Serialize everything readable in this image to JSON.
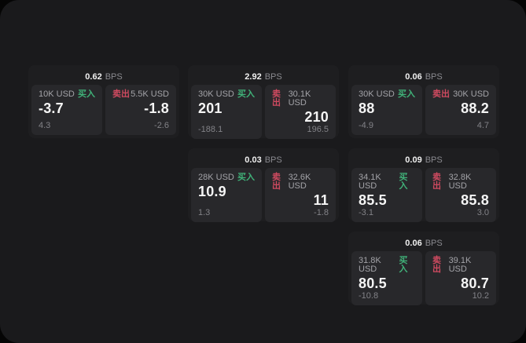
{
  "labels": {
    "unit": "BPS",
    "buy": "买入",
    "sell": "卖出"
  },
  "colors": {
    "buy_green": "#40b279",
    "sell_red": "#cf4a60",
    "window_bg": "#1a1a1c",
    "card_bg": "#1e1e20",
    "panel_bg": "#28282b"
  },
  "cards": [
    {
      "bps": "0.62",
      "buy": {
        "amount": "10K USD",
        "price": "-3.7",
        "sub": "4.3"
      },
      "sell": {
        "amount": "5.5K USD",
        "price": "-1.8",
        "sub": "-2.6"
      }
    },
    {
      "bps": "2.92",
      "buy": {
        "amount": "30K USD",
        "price": "201",
        "sub": "-188.1"
      },
      "sell": {
        "amount": "30.1K USD",
        "price": "210",
        "sub": "196.5"
      }
    },
    {
      "bps": "0.06",
      "buy": {
        "amount": "30K USD",
        "price": "88",
        "sub": "-4.9"
      },
      "sell": {
        "amount": "30K USD",
        "price": "88.2",
        "sub": "4.7"
      }
    },
    {
      "bps": "0.03",
      "buy": {
        "amount": "28K USD",
        "price": "10.9",
        "sub": "1.3"
      },
      "sell": {
        "amount": "32.6K USD",
        "price": "11",
        "sub": "-1.8"
      }
    },
    {
      "bps": "0.09",
      "buy": {
        "amount": "34.1K USD",
        "price": "85.5",
        "sub": "-3.1"
      },
      "sell": {
        "amount": "32.8K USD",
        "price": "85.8",
        "sub": "3.0"
      }
    },
    {
      "bps": "0.06",
      "buy": {
        "amount": "31.8K USD",
        "price": "80.5",
        "sub": "-10.8"
      },
      "sell": {
        "amount": "39.1K USD",
        "price": "80.7",
        "sub": "10.2"
      }
    }
  ]
}
